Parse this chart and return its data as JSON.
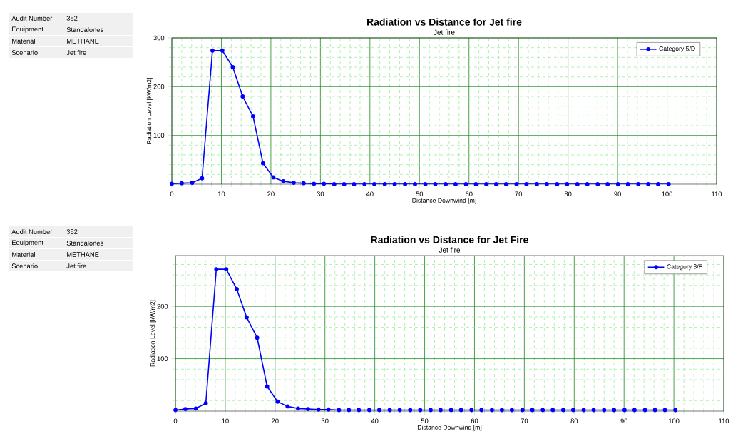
{
  "chart_data": [
    {
      "type": "line",
      "title": "Radiation vs Distance for Jet fire",
      "subtitle": "Jet fire",
      "xlabel": "Distance Downwind [m]",
      "ylabel": "Radiation Level [kW/m2]",
      "annotations": [
        "Audit Number",
        "352",
        "Equipment",
        "Standalones",
        "Material",
        "METHANE",
        "Scenario",
        "Jet fire"
      ],
      "x": [
        0,
        2.0,
        4.1,
        6.1,
        8.2,
        10.2,
        12.3,
        14.3,
        16.4,
        18.4,
        20.5,
        22.5,
        24.6,
        26.6,
        28.7,
        30.7,
        32.8,
        34.8,
        36.8,
        38.9,
        40.9,
        43.0,
        45.0,
        47.1,
        49.1,
        51.2,
        53.2,
        55.3,
        57.3,
        59.4,
        61.4,
        63.5,
        65.5,
        67.5,
        69.6,
        71.6,
        73.7,
        75.7,
        77.8,
        79.8,
        81.9,
        83.9,
        86.0,
        88.0,
        90.1,
        92.1,
        94.2,
        96.2,
        98.2,
        100.3
      ],
      "series": [
        {
          "name": "Category 5/D",
          "color": "#0000ff",
          "values": [
            1,
            2,
            3,
            12,
            274,
            274,
            240,
            180,
            139,
            43,
            14,
            6,
            3,
            2,
            1,
            1,
            0,
            0,
            0,
            0,
            0,
            0,
            0,
            0,
            0,
            0,
            0,
            0,
            0,
            0,
            0,
            0,
            0,
            0,
            0,
            0,
            0,
            0,
            0,
            0,
            0,
            0,
            0,
            0,
            0,
            0,
            0,
            0,
            0,
            0
          ]
        }
      ],
      "xlim": [
        0,
        110
      ],
      "ylim": [
        0,
        300
      ],
      "xticks": [
        0,
        {
          "value": 2,
          "label": null
        },
        {
          "value": 4,
          "label": null
        },
        {
          "value": 6,
          "label": null
        },
        {
          "value": 8,
          "label": null
        },
        10,
        {
          "value": 12,
          "label": null
        },
        {
          "value": 14,
          "label": null
        },
        {
          "value": 16,
          "label": null
        },
        {
          "value": 18,
          "label": null
        },
        20,
        {
          "value": 22,
          "label": null
        },
        {
          "value": 24,
          "label": null
        },
        {
          "value": 26,
          "label": null
        },
        {
          "value": 28,
          "label": null
        },
        30,
        {
          "value": 32,
          "label": null
        },
        {
          "value": 34,
          "label": null
        },
        {
          "value": 36,
          "label": null
        },
        {
          "value": 38,
          "label": null
        },
        40,
        {
          "value": 42,
          "label": null
        },
        {
          "value": 44,
          "label": null
        },
        {
          "value": 46,
          "label": null
        },
        {
          "value": 48,
          "label": null
        },
        50,
        {
          "value": 52,
          "label": null
        },
        {
          "value": 54,
          "label": null
        },
        {
          "value": 56,
          "label": null
        },
        {
          "value": 58,
          "label": null
        },
        60,
        {
          "value": 62,
          "label": null
        },
        {
          "value": 64,
          "label": null
        },
        {
          "value": 66,
          "label": null
        },
        {
          "value": 68,
          "label": null
        },
        70,
        {
          "value": 72,
          "label": null
        },
        {
          "value": 74,
          "label": null
        },
        {
          "value": 76,
          "label": null
        },
        {
          "value": 78,
          "label": null
        },
        80,
        {
          "value": 82,
          "label": null
        },
        {
          "value": 84,
          "label": null
        },
        {
          "value": 86,
          "label": null
        },
        {
          "value": 88,
          "label": null
        },
        90,
        {
          "value": 92,
          "label": null
        },
        {
          "value": 94,
          "label": null
        },
        {
          "value": 96,
          "label": null
        },
        {
          "value": 98,
          "label": null
        },
        100,
        {
          "value": 102,
          "label": null
        },
        {
          "value": 104,
          "label": null
        },
        {
          "value": 106,
          "label": null
        },
        {
          "value": 108,
          "label": null
        },
        110
      ],
      "yticks": [
        {
          "value": 20,
          "label": null
        },
        {
          "value": 40,
          "label": null
        },
        {
          "value": 60,
          "label": null
        },
        {
          "value": 80,
          "label": null
        },
        100,
        {
          "value": 120,
          "label": null
        },
        {
          "value": 140,
          "label": null
        },
        {
          "value": 160,
          "label": null
        },
        {
          "value": 180,
          "label": null
        },
        200,
        {
          "value": 220,
          "label": null
        },
        {
          "value": 240,
          "label": null
        },
        {
          "value": 260,
          "label": null
        },
        {
          "value": 280,
          "label": null
        },
        300
      ],
      "grid": true,
      "legend": "top right",
      "marker": "circle",
      "line_style": "solid"
    },
    {
      "type": "line",
      "title": "Radiation vs Distance for Jet Fire",
      "subtitle": "Jet fire",
      "xlabel": "Distance Downwind [m]",
      "ylabel": "Radiation Level [kW/m2]",
      "annotations": [
        "Audit Number",
        "352",
        "Equipment",
        "Standalones",
        "Material",
        "METHANE",
        "Scenario",
        "Jet fire"
      ],
      "x": [
        0,
        2.0,
        4.1,
        6.1,
        8.2,
        10.2,
        12.3,
        14.3,
        16.4,
        18.4,
        20.5,
        22.5,
        24.6,
        26.6,
        28.7,
        30.7,
        32.8,
        34.8,
        36.8,
        38.9,
        40.9,
        43.0,
        45.0,
        47.1,
        49.1,
        51.2,
        53.2,
        55.3,
        57.3,
        59.4,
        61.4,
        63.5,
        65.5,
        67.5,
        69.6,
        71.6,
        73.7,
        75.7,
        77.8,
        79.8,
        81.9,
        83.9,
        86.0,
        88.0,
        90.1,
        92.1,
        94.2,
        96.2,
        98.2,
        100.3
      ],
      "series": [
        {
          "name": "Category 3/F",
          "color": "#0000ff",
          "values": [
            2,
            4,
            5,
            15,
            271,
            271,
            233,
            179,
            140,
            47,
            18,
            9,
            5,
            4,
            3,
            3,
            2,
            2,
            2,
            2,
            2,
            2,
            2,
            2,
            2,
            2,
            2,
            2,
            2,
            2,
            2,
            2,
            2,
            2,
            2,
            2,
            2,
            2,
            2,
            2,
            2,
            2,
            2,
            2,
            2,
            2,
            2,
            2,
            2,
            2
          ]
        }
      ],
      "xlim": [
        0,
        110
      ],
      "ylim": [
        0,
        297
      ],
      "xticks": [
        0,
        {
          "value": 2,
          "label": null
        },
        {
          "value": 4,
          "label": null
        },
        {
          "value": 6,
          "label": null
        },
        {
          "value": 8,
          "label": null
        },
        10,
        {
          "value": 12,
          "label": null
        },
        {
          "value": 14,
          "label": null
        },
        {
          "value": 16,
          "label": null
        },
        {
          "value": 18,
          "label": null
        },
        20,
        {
          "value": 22,
          "label": null
        },
        {
          "value": 24,
          "label": null
        },
        {
          "value": 26,
          "label": null
        },
        {
          "value": 28,
          "label": null
        },
        30,
        {
          "value": 32,
          "label": null
        },
        {
          "value": 34,
          "label": null
        },
        {
          "value": 36,
          "label": null
        },
        {
          "value": 38,
          "label": null
        },
        40,
        {
          "value": 42,
          "label": null
        },
        {
          "value": 44,
          "label": null
        },
        {
          "value": 46,
          "label": null
        },
        {
          "value": 48,
          "label": null
        },
        50,
        {
          "value": 52,
          "label": null
        },
        {
          "value": 54,
          "label": null
        },
        {
          "value": 56,
          "label": null
        },
        {
          "value": 58,
          "label": null
        },
        60,
        {
          "value": 62,
          "label": null
        },
        {
          "value": 64,
          "label": null
        },
        {
          "value": 66,
          "label": null
        },
        {
          "value": 68,
          "label": null
        },
        70,
        {
          "value": 72,
          "label": null
        },
        {
          "value": 74,
          "label": null
        },
        {
          "value": 76,
          "label": null
        },
        {
          "value": 78,
          "label": null
        },
        80,
        {
          "value": 82,
          "label": null
        },
        {
          "value": 84,
          "label": null
        },
        {
          "value": 86,
          "label": null
        },
        {
          "value": 88,
          "label": null
        },
        90,
        {
          "value": 92,
          "label": null
        },
        {
          "value": 94,
          "label": null
        },
        {
          "value": 96,
          "label": null
        },
        {
          "value": 98,
          "label": null
        },
        100,
        {
          "value": 102,
          "label": null
        },
        {
          "value": 104,
          "label": null
        },
        {
          "value": 106,
          "label": null
        },
        {
          "value": 108,
          "label": null
        },
        110
      ],
      "yticks": [
        {
          "value": 20,
          "label": null
        },
        {
          "value": 40,
          "label": null
        },
        {
          "value": 60,
          "label": null
        },
        {
          "value": 80,
          "label": null
        },
        100,
        {
          "value": 120,
          "label": null
        },
        {
          "value": 140,
          "label": null
        },
        {
          "value": 160,
          "label": null
        },
        {
          "value": 180,
          "label": null
        },
        200,
        {
          "value": 220,
          "label": null
        },
        {
          "value": 240,
          "label": null
        },
        {
          "value": 260,
          "label": null
        },
        {
          "value": 280,
          "label": null
        }
      ],
      "grid": true,
      "legend": "top right",
      "marker": "circle",
      "line_style": "solid"
    }
  ]
}
